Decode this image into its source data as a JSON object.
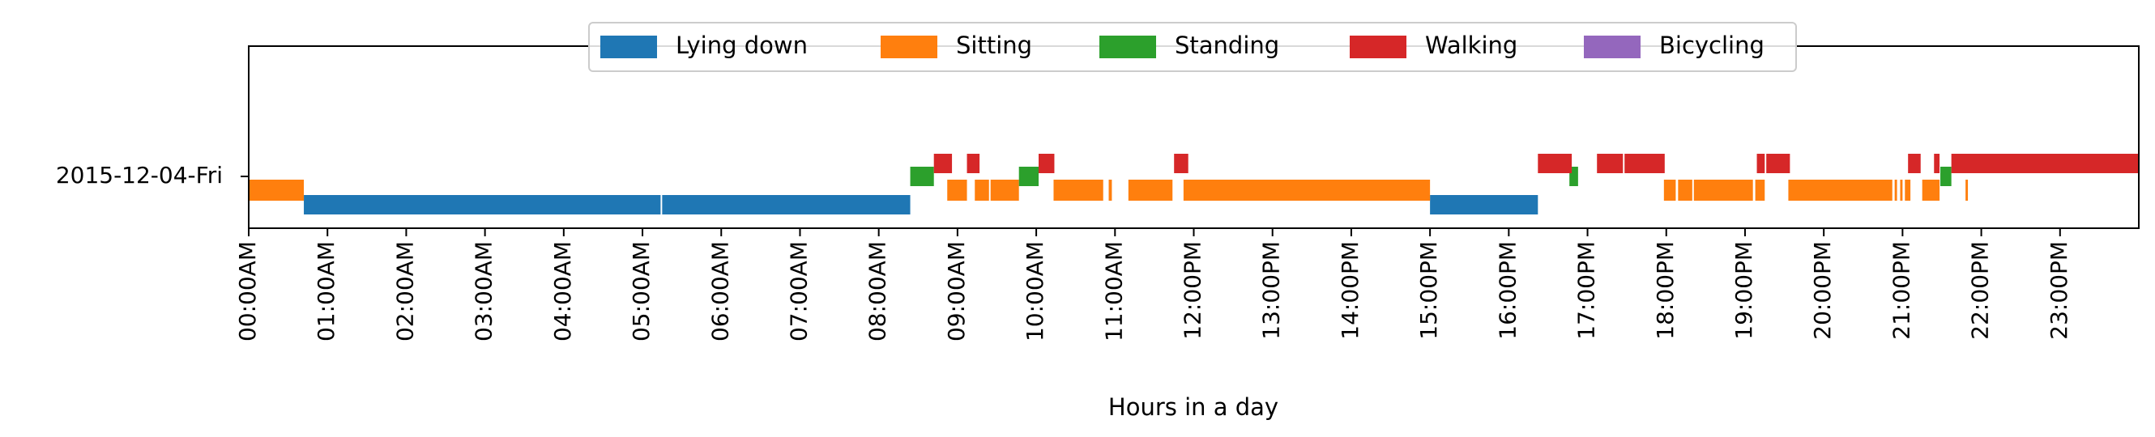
{
  "chart_data": {
    "type": "timeline",
    "xlabel": "Hours in a day",
    "row_label": "2015-12-04-Fri",
    "x_unit": "hours",
    "xlim": [
      0,
      24
    ],
    "tick_labels": [
      "00:00AM",
      "01:00AM",
      "02:00AM",
      "03:00AM",
      "04:00AM",
      "05:00AM",
      "06:00AM",
      "07:00AM",
      "08:00AM",
      "09:00AM",
      "10:00AM",
      "11:00AM",
      "12:00PM",
      "13:00PM",
      "14:00PM",
      "15:00PM",
      "16:00PM",
      "17:00PM",
      "18:00PM",
      "19:00PM",
      "20:00PM",
      "21:00PM",
      "22:00PM",
      "23:00PM"
    ],
    "legend_position": "top-center",
    "series": [
      {
        "name": "Lying down",
        "color": "#1f77b4",
        "intervals": [
          [
            0.7,
            5.23
          ],
          [
            5.25,
            8.4
          ],
          [
            15.0,
            16.37
          ]
        ]
      },
      {
        "name": "Sitting",
        "color": "#ff7f0e",
        "intervals": [
          [
            0.0,
            0.7
          ],
          [
            8.87,
            9.12
          ],
          [
            9.22,
            9.4
          ],
          [
            9.42,
            9.78
          ],
          [
            10.22,
            10.85
          ],
          [
            10.92,
            10.96
          ],
          [
            11.17,
            11.73
          ],
          [
            11.87,
            15.0
          ],
          [
            17.97,
            18.12
          ],
          [
            18.15,
            18.33
          ],
          [
            18.35,
            19.1
          ],
          [
            19.13,
            19.25
          ],
          [
            19.55,
            20.87
          ],
          [
            20.9,
            20.93
          ],
          [
            20.97,
            21.0
          ],
          [
            21.03,
            21.1
          ],
          [
            21.25,
            21.47
          ],
          [
            21.8,
            21.83
          ]
        ]
      },
      {
        "name": "Standing",
        "color": "#2ca02c",
        "intervals": [
          [
            8.4,
            8.7
          ],
          [
            9.78,
            10.03
          ],
          [
            16.77,
            16.88
          ],
          [
            21.48,
            21.62
          ]
        ]
      },
      {
        "name": "Walking",
        "color": "#d62728",
        "intervals": [
          [
            8.7,
            8.93
          ],
          [
            9.12,
            9.28
          ],
          [
            10.03,
            10.23
          ],
          [
            11.75,
            11.93
          ],
          [
            16.37,
            16.8
          ],
          [
            17.12,
            17.45
          ],
          [
            17.47,
            17.98
          ],
          [
            19.15,
            19.25
          ],
          [
            19.27,
            19.57
          ],
          [
            21.07,
            21.23
          ],
          [
            21.4,
            21.47
          ],
          [
            21.62,
            24.0
          ]
        ]
      },
      {
        "name": "Bicycling",
        "color": "#9467bd",
        "intervals": []
      }
    ]
  }
}
